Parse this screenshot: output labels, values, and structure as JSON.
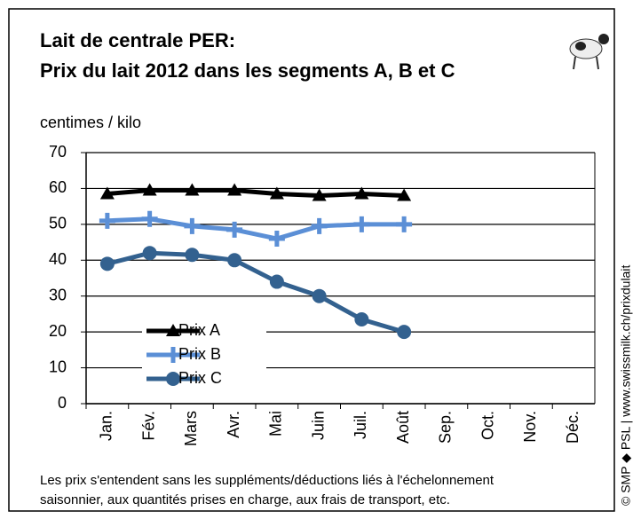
{
  "chart_data": {
    "type": "line",
    "title": "Lait de centrale PER:",
    "subtitle": "Prix du lait 2012 dans les segments A, B et C",
    "y_label": "centimes / kilo",
    "categories": [
      "Jan.",
      "Fév.",
      "Mars",
      "Avr.",
      "Mai",
      "Juin",
      "Juil.",
      "Août",
      "Sep.",
      "Oct.",
      "Nov.",
      "Déc."
    ],
    "series": [
      {
        "name": "Prix A",
        "color": "#000000",
        "marker": "triangle",
        "values": [
          58.5,
          59.5,
          59.5,
          59.5,
          58.5,
          58,
          58.5,
          58,
          null,
          null,
          null,
          null
        ]
      },
      {
        "name": "Prix B",
        "color": "#5b8fd6",
        "marker": "plus",
        "values": [
          51,
          51.5,
          49.5,
          48.5,
          46,
          49.5,
          50,
          50,
          null,
          null,
          null,
          null
        ]
      },
      {
        "name": "Prix C",
        "color": "#33618f",
        "marker": "circle",
        "values": [
          39,
          42,
          41.5,
          40,
          34,
          30,
          23.5,
          20,
          null,
          null,
          null,
          null
        ]
      }
    ],
    "ylim": [
      0,
      70
    ],
    "yticks": [
      0,
      10,
      20,
      30,
      40,
      50,
      60,
      70
    ],
    "grid": true,
    "note": [
      "Les prix s'entendent sans les suppléments/déductions liés à l'échelonnement",
      "saisonnier, aux quantités prises en charge, aux frais de transport, etc."
    ],
    "credit": "© SMP ◆ PSL | www.swissmilk.ch/prixdulait"
  }
}
